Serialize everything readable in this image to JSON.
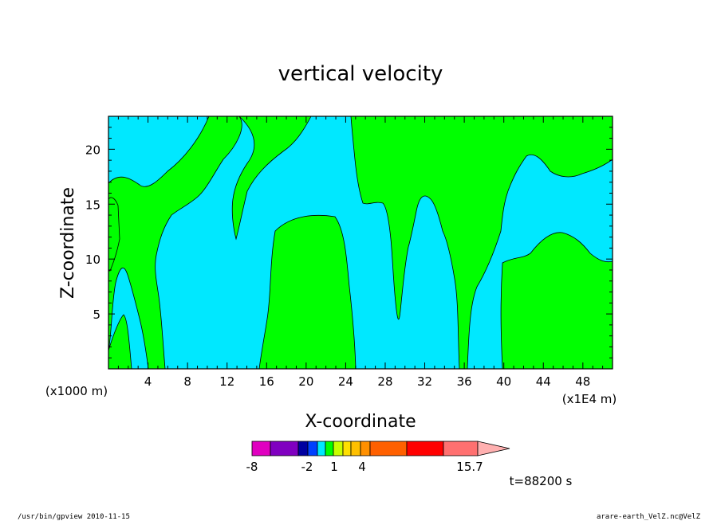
{
  "chart_data": {
    "type": "contour",
    "title": "vertical velocity",
    "xlabel": "X-coordinate",
    "ylabel": "Z-coordinate",
    "x_unit_label": "(x1000 m)",
    "x_scale_label": "(x1E4 m)",
    "xlim": [
      0,
      51
    ],
    "ylim": [
      0,
      23
    ],
    "x_ticks": [
      4,
      8,
      12,
      16,
      20,
      24,
      28,
      32,
      36,
      40,
      44,
      48
    ],
    "y_ticks": [
      5,
      10,
      15,
      20
    ],
    "colorbar": {
      "colors": [
        "#e000c0",
        "#8000c0",
        "#0000a0",
        "#0040ff",
        "#00e8ff",
        "#00ff00",
        "#c8ff00",
        "#ffe000",
        "#ffc000",
        "#ff9000",
        "#ff6000",
        "#ff0000",
        "#ff7070",
        "#ffb0b0"
      ],
      "labels": [
        "-8",
        "-2",
        "1",
        "4",
        "15.7"
      ]
    },
    "time_label": "t=88200 s",
    "regions_color_cyan": "#00e8ff",
    "regions_color_green": "#00ff00"
  },
  "footer": {
    "left": "/usr/bin/gpview  2010-11-15",
    "right": "arare-earth_VelZ.nc@VelZ"
  }
}
